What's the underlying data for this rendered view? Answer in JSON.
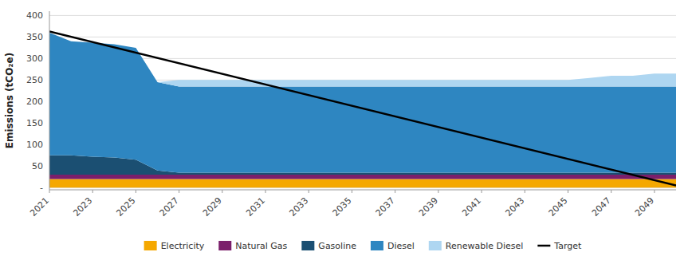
{
  "chart_data": {
    "type": "area",
    "stacked": true,
    "y_label": "Emissions (tCO₂e)",
    "x": [
      2021,
      2022,
      2023,
      2024,
      2025,
      2026,
      2027,
      2028,
      2029,
      2030,
      2031,
      2032,
      2033,
      2034,
      2035,
      2036,
      2037,
      2038,
      2039,
      2040,
      2041,
      2042,
      2043,
      2044,
      2045,
      2046,
      2047,
      2048,
      2049,
      2050
    ],
    "series": [
      {
        "name": "Electricity",
        "color": "#F5A800",
        "values": [
          20,
          20,
          20,
          20,
          20,
          20,
          20,
          20,
          20,
          20,
          20,
          20,
          20,
          20,
          20,
          20,
          20,
          20,
          20,
          20,
          20,
          20,
          20,
          20,
          20,
          20,
          20,
          20,
          20,
          20
        ]
      },
      {
        "name": "Natural Gas",
        "color": "#7B1F6B",
        "values": [
          10,
          10,
          10,
          10,
          10,
          10,
          10,
          10,
          10,
          10,
          10,
          10,
          10,
          10,
          10,
          10,
          10,
          10,
          10,
          10,
          10,
          10,
          10,
          10,
          10,
          10,
          10,
          10,
          10,
          10
        ]
      },
      {
        "name": "Gasoline",
        "color": "#1B4F72",
        "values": [
          45,
          45,
          42,
          40,
          35,
          10,
          5,
          5,
          5,
          5,
          5,
          5,
          5,
          5,
          5,
          5,
          5,
          5,
          5,
          5,
          5,
          5,
          5,
          5,
          5,
          5,
          5,
          5,
          5,
          5
        ]
      },
      {
        "name": "Diesel",
        "color": "#2E86C1",
        "values": [
          285,
          265,
          265,
          263,
          260,
          205,
          200,
          200,
          200,
          200,
          200,
          200,
          200,
          200,
          200,
          200,
          200,
          200,
          200,
          200,
          200,
          200,
          200,
          200,
          200,
          200,
          200,
          200,
          200,
          200
        ]
      },
      {
        "name": "Renewable Diesel",
        "color": "#AED6F1",
        "values": [
          0,
          0,
          0,
          0,
          0,
          0,
          15,
          15,
          15,
          15,
          15,
          15,
          15,
          15,
          15,
          15,
          15,
          15,
          15,
          15,
          15,
          15,
          15,
          15,
          15,
          20,
          25,
          25,
          30,
          30
        ]
      },
      {
        "name": "Target",
        "type": "line",
        "color": "#000000",
        "x": [
          2021,
          2050
        ],
        "values": [
          363,
          5
        ]
      }
    ],
    "xlim": [
      2021,
      2050
    ],
    "xticks": [
      2021,
      2023,
      2025,
      2027,
      2029,
      2031,
      2033,
      2035,
      2037,
      2039,
      2041,
      2043,
      2045,
      2047,
      2049
    ],
    "ylim": [
      -5,
      410
    ],
    "yticks": [
      {
        "value": 0,
        "label": "-"
      },
      50,
      100,
      150,
      200,
      250,
      300,
      350,
      400
    ],
    "grid": true,
    "legend": "bottom"
  }
}
